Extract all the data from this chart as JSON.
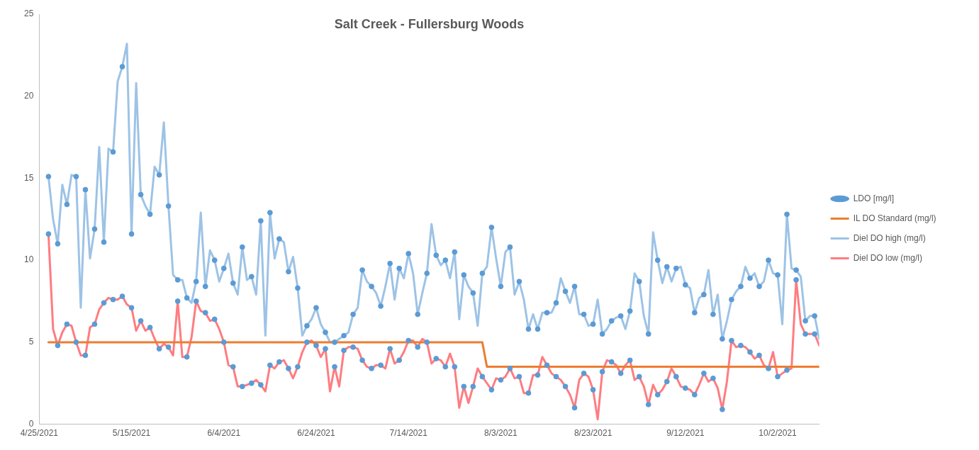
{
  "chart_data": {
    "type": "line",
    "title": "Salt Creek - Fullersburg Woods",
    "x": [
      "2021-04-27",
      "2021-04-28",
      "2021-04-29",
      "2021-04-30",
      "2021-05-01",
      "2021-05-02",
      "2021-05-03",
      "2021-05-04",
      "2021-05-05",
      "2021-05-06",
      "2021-05-07",
      "2021-05-08",
      "2021-05-09",
      "2021-05-10",
      "2021-05-11",
      "2021-05-12",
      "2021-05-13",
      "2021-05-14",
      "2021-05-15",
      "2021-05-16",
      "2021-05-17",
      "2021-05-18",
      "2021-05-19",
      "2021-05-20",
      "2021-05-21",
      "2021-05-22",
      "2021-05-23",
      "2021-05-24",
      "2021-05-25",
      "2021-05-26",
      "2021-05-27",
      "2021-05-28",
      "2021-05-29",
      "2021-05-30",
      "2021-05-31",
      "2021-06-01",
      "2021-06-02",
      "2021-06-03",
      "2021-06-04",
      "2021-06-05",
      "2021-06-06",
      "2021-06-07",
      "2021-06-08",
      "2021-06-09",
      "2021-06-10",
      "2021-06-11",
      "2021-06-12",
      "2021-06-13",
      "2021-06-14",
      "2021-06-15",
      "2021-06-16",
      "2021-06-17",
      "2021-06-18",
      "2021-06-19",
      "2021-06-20",
      "2021-06-21",
      "2021-06-22",
      "2021-06-23",
      "2021-06-24",
      "2021-06-25",
      "2021-06-26",
      "2021-06-27",
      "2021-06-28",
      "2021-06-29",
      "2021-06-30",
      "2021-07-01",
      "2021-07-02",
      "2021-07-03",
      "2021-07-04",
      "2021-07-05",
      "2021-07-06",
      "2021-07-07",
      "2021-07-08",
      "2021-07-09",
      "2021-07-10",
      "2021-07-11",
      "2021-07-12",
      "2021-07-13",
      "2021-07-14",
      "2021-07-15",
      "2021-07-16",
      "2021-07-17",
      "2021-07-18",
      "2021-07-19",
      "2021-07-20",
      "2021-07-21",
      "2021-07-22",
      "2021-07-23",
      "2021-07-24",
      "2021-07-25",
      "2021-07-26",
      "2021-07-27",
      "2021-07-28",
      "2021-07-29",
      "2021-07-30",
      "2021-07-31",
      "2021-08-01",
      "2021-08-02",
      "2021-08-03",
      "2021-08-04",
      "2021-08-05",
      "2021-08-06",
      "2021-08-07",
      "2021-08-08",
      "2021-08-09",
      "2021-08-10",
      "2021-08-11",
      "2021-08-12",
      "2021-08-13",
      "2021-08-14",
      "2021-08-15",
      "2021-08-16",
      "2021-08-17",
      "2021-08-18",
      "2021-08-19",
      "2021-08-20",
      "2021-08-21",
      "2021-08-22",
      "2021-08-23",
      "2021-08-24",
      "2021-08-25",
      "2021-08-26",
      "2021-08-27",
      "2021-08-28",
      "2021-08-29",
      "2021-08-30",
      "2021-08-31",
      "2021-09-01",
      "2021-09-02",
      "2021-09-03",
      "2021-09-04",
      "2021-09-05",
      "2021-09-06",
      "2021-09-07",
      "2021-09-08",
      "2021-09-09",
      "2021-09-10",
      "2021-09-11",
      "2021-09-12",
      "2021-09-13",
      "2021-09-14",
      "2021-09-15",
      "2021-09-16",
      "2021-09-17",
      "2021-09-18",
      "2021-09-19",
      "2021-09-20",
      "2021-09-21",
      "2021-09-22",
      "2021-09-23",
      "2021-09-24",
      "2021-09-25",
      "2021-09-26",
      "2021-09-27",
      "2021-09-28",
      "2021-09-29",
      "2021-09-30",
      "2021-10-01",
      "2021-10-02",
      "2021-10-03",
      "2021-10-04",
      "2021-10-05",
      "2021-10-06",
      "2021-10-07",
      "2021-10-08",
      "2021-10-09",
      "2021-10-10",
      "2021-10-11"
    ],
    "series": [
      {
        "name": "LDO [mg/l]",
        "type": "scatter",
        "color": "#5b9bd5",
        "marker": "circle",
        "x": [
          "2021-04-27",
          "2021-04-27",
          "2021-04-29",
          "2021-04-29",
          "2021-05-01",
          "2021-05-01",
          "2021-05-03",
          "2021-05-03",
          "2021-05-05",
          "2021-05-05",
          "2021-05-07",
          "2021-05-07",
          "2021-05-09",
          "2021-05-09",
          "2021-05-11",
          "2021-05-11",
          "2021-05-13",
          "2021-05-13",
          "2021-05-15",
          "2021-05-15",
          "2021-05-17",
          "2021-05-17",
          "2021-05-19",
          "2021-05-19",
          "2021-05-21",
          "2021-05-21",
          "2021-05-23",
          "2021-05-23",
          "2021-05-25",
          "2021-05-25",
          "2021-05-27",
          "2021-05-27",
          "2021-05-29",
          "2021-05-29",
          "2021-05-31",
          "2021-05-31",
          "2021-06-02",
          "2021-06-02",
          "2021-06-04",
          "2021-06-04",
          "2021-06-06",
          "2021-06-06",
          "2021-06-08",
          "2021-06-08",
          "2021-06-10",
          "2021-06-10",
          "2021-06-12",
          "2021-06-12",
          "2021-06-14",
          "2021-06-14",
          "2021-06-16",
          "2021-06-16",
          "2021-06-18",
          "2021-06-18",
          "2021-06-20",
          "2021-06-20",
          "2021-06-22",
          "2021-06-22",
          "2021-06-24",
          "2021-06-24",
          "2021-06-26",
          "2021-06-26",
          "2021-06-28",
          "2021-06-28",
          "2021-06-30",
          "2021-06-30",
          "2021-07-02",
          "2021-07-02",
          "2021-07-04",
          "2021-07-04",
          "2021-07-06",
          "2021-07-06",
          "2021-07-08",
          "2021-07-08",
          "2021-07-10",
          "2021-07-10",
          "2021-07-12",
          "2021-07-12",
          "2021-07-14",
          "2021-07-14",
          "2021-07-16",
          "2021-07-16",
          "2021-07-18",
          "2021-07-18",
          "2021-07-20",
          "2021-07-20",
          "2021-07-22",
          "2021-07-22",
          "2021-07-24",
          "2021-07-24",
          "2021-07-26",
          "2021-07-26",
          "2021-07-28",
          "2021-07-28",
          "2021-07-30",
          "2021-07-30",
          "2021-08-01",
          "2021-08-01",
          "2021-08-03",
          "2021-08-03",
          "2021-08-05",
          "2021-08-05",
          "2021-08-07",
          "2021-08-07",
          "2021-08-09",
          "2021-08-09",
          "2021-08-11",
          "2021-08-11",
          "2021-08-13",
          "2021-08-13",
          "2021-08-15",
          "2021-08-15",
          "2021-08-17",
          "2021-08-17",
          "2021-08-19",
          "2021-08-19",
          "2021-08-21",
          "2021-08-21",
          "2021-08-23",
          "2021-08-23",
          "2021-08-25",
          "2021-08-25",
          "2021-08-27",
          "2021-08-27",
          "2021-08-29",
          "2021-08-29",
          "2021-08-31",
          "2021-08-31",
          "2021-09-02",
          "2021-09-02",
          "2021-09-04",
          "2021-09-04",
          "2021-09-06",
          "2021-09-06",
          "2021-09-08",
          "2021-09-08",
          "2021-09-10",
          "2021-09-10",
          "2021-09-12",
          "2021-09-12",
          "2021-09-14",
          "2021-09-14",
          "2021-09-16",
          "2021-09-16",
          "2021-09-18",
          "2021-09-18",
          "2021-09-20",
          "2021-09-20",
          "2021-09-22",
          "2021-09-22",
          "2021-09-24",
          "2021-09-24",
          "2021-09-26",
          "2021-09-26",
          "2021-09-28",
          "2021-09-28",
          "2021-09-30",
          "2021-09-30",
          "2021-10-02",
          "2021-10-02",
          "2021-10-04",
          "2021-10-04",
          "2021-10-06",
          "2021-10-06",
          "2021-10-08",
          "2021-10-08",
          "2021-10-10",
          "2021-10-10"
        ],
        "values": [
          15.1,
          11.6,
          11.0,
          4.8,
          13.4,
          6.1,
          15.1,
          5.0,
          14.3,
          4.2,
          11.9,
          6.1,
          11.1,
          7.4,
          16.6,
          7.6,
          21.8,
          7.8,
          11.6,
          7.1,
          14.0,
          6.3,
          12.8,
          5.9,
          15.2,
          4.6,
          13.3,
          4.7,
          8.8,
          7.5,
          7.7,
          4.1,
          8.7,
          7.5,
          8.4,
          6.8,
          10.0,
          6.4,
          9.5,
          5.0,
          8.6,
          3.5,
          10.8,
          2.3,
          9.0,
          2.5,
          12.4,
          2.4,
          12.9,
          3.6,
          11.3,
          3.8,
          9.3,
          3.4,
          8.3,
          3.5,
          6.0,
          5.0,
          7.1,
          4.8,
          5.6,
          4.6,
          5.0,
          3.5,
          5.4,
          4.5,
          6.7,
          4.7,
          9.4,
          3.9,
          8.4,
          3.4,
          7.2,
          3.6,
          9.8,
          4.6,
          9.5,
          3.9,
          10.4,
          5.1,
          6.7,
          4.7,
          9.2,
          5.0,
          10.3,
          4.0,
          10.0,
          3.5,
          10.5,
          3.5,
          9.1,
          2.3,
          8.0,
          2.3,
          9.2,
          2.9,
          12.0,
          2.1,
          8.4,
          2.7,
          10.8,
          3.4,
          8.7,
          2.9,
          5.8,
          1.9,
          5.8,
          3.0,
          6.8,
          3.6,
          7.4,
          2.9,
          8.1,
          2.3,
          8.4,
          1.0,
          6.7,
          3.1,
          6.1,
          2.1,
          5.5,
          3.2,
          6.3,
          3.8,
          6.6,
          3.1,
          6.9,
          3.9,
          8.7,
          2.9,
          5.5,
          1.2,
          10.0,
          1.8,
          9.6,
          2.6,
          9.5,
          2.9,
          8.5,
          2.2,
          6.8,
          1.8,
          7.9,
          3.1,
          6.7,
          2.8,
          5.2,
          0.9,
          7.6,
          5.1,
          8.4,
          4.8,
          8.9,
          4.4,
          8.4,
          4.2,
          10.0,
          3.4,
          9.1,
          2.9,
          12.8,
          3.3,
          9.4,
          8.8,
          6.3,
          5.5,
          6.6,
          5.5
        ]
      },
      {
        "name": "IL DO Standard (mg/l)",
        "type": "line",
        "color": "#ed7d31",
        "x": [
          "2021-04-27",
          "2021-07-30",
          "2021-07-31",
          "2021-10-11"
        ],
        "values": [
          5,
          5,
          3.5,
          3.5
        ]
      },
      {
        "name": "Diel DO high (mg/l)",
        "type": "line",
        "color": "#9dc3e6",
        "values": [
          15.1,
          12.5,
          11.0,
          14.6,
          13.4,
          15.2,
          15.1,
          7.1,
          14.3,
          10.1,
          11.9,
          16.9,
          11.1,
          16.8,
          16.6,
          20.9,
          21.8,
          23.2,
          11.6,
          20.8,
          14.0,
          13.3,
          12.8,
          15.7,
          15.2,
          18.4,
          13.3,
          9.1,
          8.8,
          8.8,
          7.7,
          7.4,
          8.7,
          12.9,
          8.4,
          10.6,
          10.0,
          8.7,
          9.5,
          10.4,
          8.6,
          7.9,
          10.8,
          8.8,
          9.0,
          7.9,
          12.4,
          5.4,
          12.9,
          10.1,
          11.3,
          11.1,
          9.3,
          10.2,
          8.3,
          5.4,
          6.0,
          6.4,
          7.1,
          6.1,
          5.6,
          5.0,
          5.0,
          5.2,
          5.4,
          5.6,
          6.7,
          7.1,
          9.4,
          8.7,
          8.4,
          8.0,
          7.2,
          8.4,
          9.8,
          7.6,
          9.5,
          8.9,
          10.4,
          9.2,
          6.7,
          8.0,
          9.2,
          12.2,
          10.3,
          9.7,
          10.0,
          8.9,
          10.5,
          6.4,
          9.1,
          8.4,
          8.0,
          6.0,
          9.2,
          9.6,
          12.0,
          10.1,
          8.4,
          10.5,
          10.8,
          7.9,
          8.7,
          7.6,
          5.8,
          6.7,
          5.8,
          6.8,
          6.8,
          6.8,
          7.4,
          8.9,
          8.1,
          7.4,
          8.4,
          6.7,
          6.7,
          6.0,
          6.1,
          7.6,
          5.5,
          5.8,
          6.3,
          6.5,
          6.6,
          5.8,
          6.9,
          9.2,
          8.7,
          6.6,
          5.5,
          11.7,
          10.0,
          8.6,
          9.6,
          8.7,
          9.5,
          9.6,
          8.5,
          8.3,
          6.8,
          7.7,
          7.9,
          9.4,
          6.7,
          7.9,
          5.2,
          6.3,
          7.6,
          8.1,
          8.4,
          9.6,
          8.9,
          9.2,
          8.4,
          8.7,
          10.0,
          9.2,
          9.1,
          6.1,
          12.8,
          9.5,
          9.4,
          9.0,
          6.3,
          6.6,
          6.6,
          5.2
        ]
      },
      {
        "name": "Diel DO low (mg/l)",
        "type": "line",
        "color": "#ff7c80",
        "values": [
          11.6,
          5.8,
          4.8,
          5.6,
          6.1,
          6.0,
          5.0,
          4.2,
          4.2,
          5.9,
          6.1,
          7.0,
          7.4,
          7.7,
          7.6,
          7.6,
          7.8,
          7.3,
          7.1,
          5.7,
          6.3,
          5.7,
          5.9,
          5.2,
          4.6,
          4.9,
          4.7,
          4.2,
          7.5,
          4.1,
          4.1,
          5.3,
          7.5,
          6.9,
          6.8,
          6.3,
          6.4,
          5.8,
          5.0,
          3.6,
          3.5,
          2.3,
          2.3,
          2.4,
          2.5,
          2.7,
          2.4,
          2.0,
          3.6,
          3.4,
          3.8,
          3.9,
          3.4,
          2.8,
          3.5,
          4.4,
          5.0,
          5.1,
          4.8,
          4.1,
          4.6,
          2.0,
          3.5,
          2.3,
          4.5,
          4.7,
          4.7,
          4.6,
          3.9,
          3.5,
          3.4,
          3.6,
          3.6,
          3.4,
          4.6,
          3.7,
          3.9,
          4.4,
          5.1,
          5.1,
          4.7,
          5.2,
          5.0,
          3.7,
          4.0,
          3.9,
          3.5,
          4.3,
          3.5,
          1.0,
          2.3,
          1.3,
          2.3,
          3.4,
          2.9,
          2.5,
          2.1,
          2.8,
          2.7,
          2.9,
          3.4,
          2.8,
          2.9,
          1.9,
          1.9,
          3.0,
          3.0,
          4.1,
          3.6,
          3.1,
          2.9,
          2.7,
          2.3,
          1.8,
          1.0,
          2.7,
          3.1,
          2.9,
          2.1,
          0.3,
          3.2,
          3.9,
          3.8,
          3.6,
          3.1,
          3.6,
          3.9,
          2.7,
          2.9,
          2.3,
          1.2,
          2.4,
          1.8,
          2.1,
          2.6,
          3.4,
          2.9,
          2.3,
          2.2,
          2.1,
          1.8,
          2.4,
          3.1,
          2.6,
          2.8,
          2.2,
          0.9,
          2.6,
          5.1,
          4.7,
          4.8,
          4.7,
          4.4,
          4.0,
          4.2,
          3.6,
          3.4,
          4.4,
          2.9,
          3.1,
          3.3,
          3.4,
          8.8,
          6.1,
          5.5,
          5.5,
          5.5,
          4.8
        ]
      }
    ],
    "xlim": [
      "2021-04-25",
      "2021-10-11"
    ],
    "xticks": [
      {
        "value": "2021-04-25",
        "label": "4/25/2021"
      },
      {
        "value": "2021-05-15",
        "label": "5/15/2021"
      },
      {
        "value": "2021-06-04",
        "label": "6/4/2021"
      },
      {
        "value": "2021-06-24",
        "label": "6/24/2021"
      },
      {
        "value": "2021-07-14",
        "label": "7/14/2021"
      },
      {
        "value": "2021-08-03",
        "label": "8/3/2021"
      },
      {
        "value": "2021-08-23",
        "label": "8/23/2021"
      },
      {
        "value": "2021-09-12",
        "label": "9/12/2021"
      },
      {
        "value": "2021-10-02",
        "label": "10/2/2021"
      }
    ],
    "ylim": [
      0,
      25
    ],
    "yticks": [
      0,
      5,
      10,
      15,
      20,
      25
    ],
    "grid": false,
    "legend": "right",
    "line_style": "solid"
  }
}
